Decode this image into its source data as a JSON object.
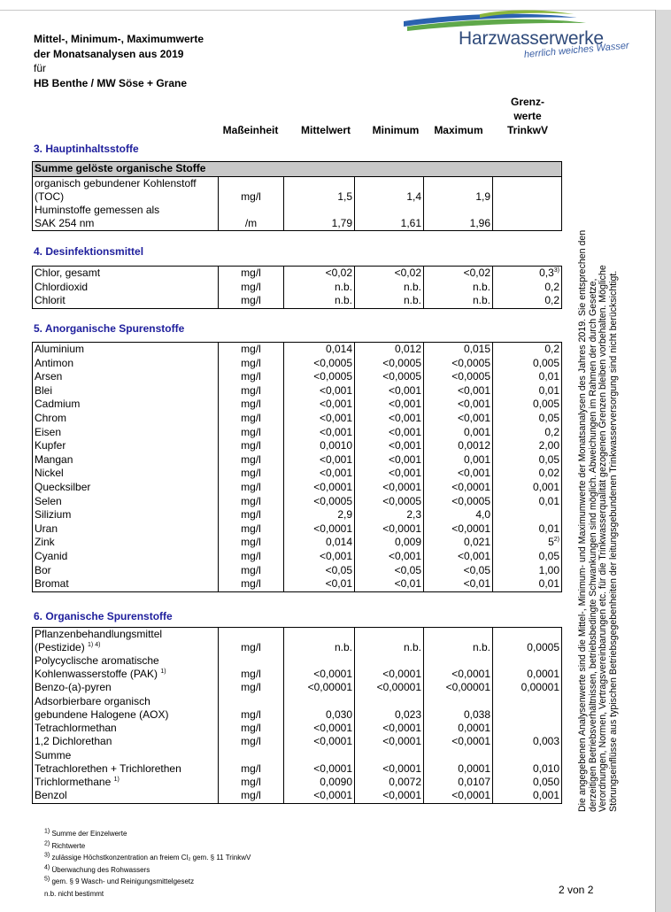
{
  "header": {
    "line1": "Mittel-, Minimum-, Maximumwerte",
    "line2": "der Monatsanalysen aus 2019",
    "line3": "für",
    "line4": "HB Benthe / MW Söse + Grane"
  },
  "logo": {
    "name": "Harzwasserwerke",
    "tagline": "herrlich weiches Wasser",
    "colors": [
      "#2b62b0",
      "#5fa84a",
      "#8ab63d"
    ]
  },
  "columns": {
    "unit": "Maßeinheit",
    "mean": "Mittelwert",
    "min": "Minimum",
    "max": "Maximum",
    "limit1": "Grenz-",
    "limit2": "werte",
    "limit3": "TrinkwV"
  },
  "sections": {
    "s3": {
      "title": "3. Hauptinhaltsstoffe",
      "group": "Summe gelöste organische Stoffe",
      "rows": [
        {
          "l1": "organisch gebundener  Kohlenstoff",
          "l2": "(TOC)",
          "unit": "mg/l",
          "mean": "1,5",
          "min": "1,4",
          "max": "1,9",
          "limit": ""
        },
        {
          "l1": "Huminstoffe gemessen als",
          "l2": "SAK 254 nm",
          "unit": "/m",
          "mean": "1,79",
          "min": "1,61",
          "max": "1,96",
          "limit": ""
        }
      ]
    },
    "s4": {
      "title": "4. Desinfektionsmittel",
      "rows": [
        {
          "name": "Chlor, gesamt",
          "unit": "mg/l",
          "mean": "<0,02",
          "min": "<0,02",
          "max": "<0,02",
          "limit": "0,3",
          "sup": "3)"
        },
        {
          "name": "Chlordioxid",
          "unit": "mg/l",
          "mean": "n.b.",
          "min": "n.b.",
          "max": "n.b.",
          "limit": "0,2",
          "sup": ""
        },
        {
          "name": "Chlorit",
          "unit": "mg/l",
          "mean": "n.b.",
          "min": "n.b.",
          "max": "n.b.",
          "limit": "0,2",
          "sup": ""
        }
      ]
    },
    "s5": {
      "title": "5. Anorganische Spurenstoffe",
      "rows": [
        {
          "name": "Aluminium",
          "unit": "mg/l",
          "mean": "0,014",
          "min": "0,012",
          "max": "0,015",
          "limit": "0,2",
          "sup": ""
        },
        {
          "name": "Antimon",
          "unit": "mg/l",
          "mean": "<0,0005",
          "min": "<0,0005",
          "max": "<0,0005",
          "limit": "0,005",
          "sup": ""
        },
        {
          "name": "Arsen",
          "unit": "mg/l",
          "mean": "<0,0005",
          "min": "<0,0005",
          "max": "<0,0005",
          "limit": "0,01",
          "sup": ""
        },
        {
          "name": "Blei",
          "unit": "mg/l",
          "mean": "<0,001",
          "min": "<0,001",
          "max": "<0,001",
          "limit": "0,01",
          "sup": ""
        },
        {
          "name": "Cadmium",
          "unit": "mg/l",
          "mean": "<0,001",
          "min": "<0,001",
          "max": "<0,001",
          "limit": "0,005",
          "sup": ""
        },
        {
          "name": "Chrom",
          "unit": "mg/l",
          "mean": "<0,001",
          "min": "<0,001",
          "max": "<0,001",
          "limit": "0,05",
          "sup": ""
        },
        {
          "name": "Eisen",
          "unit": "mg/l",
          "mean": "<0,001",
          "min": "<0,001",
          "max": "0,001",
          "limit": "0,2",
          "sup": ""
        },
        {
          "name": "Kupfer",
          "unit": "mg/l",
          "mean": "0,0010",
          "min": "<0,001",
          "max": "0,0012",
          "limit": "2,00",
          "sup": ""
        },
        {
          "name": "Mangan",
          "unit": "mg/l",
          "mean": "<0,001",
          "min": "<0,001",
          "max": "0,001",
          "limit": "0,05",
          "sup": ""
        },
        {
          "name": "Nickel",
          "unit": "mg/l",
          "mean": "<0,001",
          "min": "<0,001",
          "max": "<0,001",
          "limit": "0,02",
          "sup": ""
        },
        {
          "name": "Quecksilber",
          "unit": "mg/l",
          "mean": "<0,0001",
          "min": "<0,0001",
          "max": "<0,0001",
          "limit": "0,001",
          "sup": ""
        },
        {
          "name": "Selen",
          "unit": "mg/l",
          "mean": "<0,0005",
          "min": "<0,0005",
          "max": "<0,0005",
          "limit": "0,01",
          "sup": ""
        },
        {
          "name": "Silizium",
          "unit": "mg/l",
          "mean": "2,9",
          "min": "2,3",
          "max": "4,0",
          "limit": "",
          "sup": ""
        },
        {
          "name": "Uran",
          "unit": "mg/l",
          "mean": "<0,0001",
          "min": "<0,0001",
          "max": "<0,0001",
          "limit": "0,01",
          "sup": ""
        },
        {
          "name": "Zink",
          "unit": "mg/l",
          "mean": "0,014",
          "min": "0,009",
          "max": "0,021",
          "limit": "5",
          "sup": "2)"
        },
        {
          "name": "Cyanid",
          "unit": "mg/l",
          "mean": "<0,001",
          "min": "<0,001",
          "max": "<0,001",
          "limit": "0,05",
          "sup": ""
        },
        {
          "name": "Bor",
          "unit": "mg/l",
          "mean": "<0,05",
          "min": "<0,05",
          "max": "<0,05",
          "limit": "1,00",
          "sup": ""
        },
        {
          "name": "Bromat",
          "unit": "mg/l",
          "mean": "<0,01",
          "min": "<0,01",
          "max": "<0,01",
          "limit": "0,01",
          "sup": ""
        }
      ]
    },
    "s6": {
      "title": "6. Organische Spurenstoffe",
      "rows": [
        {
          "l1": "Pflanzenbehandlungsmittel",
          "l2": "(Pestizide)",
          "sup": "1) 4)",
          "unit": "mg/l",
          "mean": "n.b.",
          "min": "n.b.",
          "max": "n.b.",
          "limit": "0,0005"
        },
        {
          "l1": "Polycyclische aromatische",
          "l2": "Kohlenwasserstoffe (PAK)",
          "sup": "1)",
          "unit": "mg/l",
          "mean": "<0,0001",
          "min": "<0,0001",
          "max": "<0,0001",
          "limit": "0,0001"
        },
        {
          "l1": "",
          "l2": "Benzo-(a)-pyren",
          "sup": "",
          "unit": "mg/l",
          "mean": "<0,00001",
          "min": "<0,00001",
          "max": "<0,00001",
          "limit": "0,00001"
        },
        {
          "l1": "Adsorbierbare organisch",
          "l2": "gebundene Halogene (AOX)",
          "sup": "",
          "unit": "mg/l",
          "mean": "0,030",
          "min": "0,023",
          "max": "0,038",
          "limit": ""
        },
        {
          "l1": "",
          "l2": "Tetrachlormethan",
          "sup": "",
          "unit": "mg/l",
          "mean": "<0,0001",
          "min": "<0,0001",
          "max": "0,0001",
          "limit": ""
        },
        {
          "l1": "",
          "l2": "1,2 Dichlorethan",
          "sup": "",
          "unit": "mg/l",
          "mean": "<0,0001",
          "min": "<0,0001",
          "max": "<0,0001",
          "limit": "0,003"
        },
        {
          "l1": "Summe",
          "l2": "Tetrachlorethen + Trichlorethen",
          "sup": "",
          "unit": "mg/l",
          "mean": "<0,0001",
          "min": "<0,0001",
          "max": "0,0001",
          "limit": "0,010"
        },
        {
          "l1": "",
          "l2": "Trichlormethane",
          "sup": "1)",
          "unit": "mg/l",
          "mean": "0,0090",
          "min": "0,0072",
          "max": "0,0107",
          "limit": "0,050"
        },
        {
          "l1": "",
          "l2": "Benzol",
          "sup": "",
          "unit": "mg/l",
          "mean": "<0,0001",
          "min": "<0,0001",
          "max": "<0,0001",
          "limit": "0,001"
        }
      ]
    }
  },
  "side_note": {
    "l1": "Die angegebenen Analysenwerte sind die Mittel-, Minimum- und Maximumwerte der Monatsanalysen des Jahres 2019. Sie entsprechen den",
    "l2": "derzeitigen Betriebsverhältnissen, betriebsbedingte Schwankungen sind möglich. Abweichungen im Rahmen der durch Gesetze,",
    "l3": "Verordnungen, Normen, Vertragsvereinbarungen etc. für die Trinkwasserqualität gezogenen Grenzen bleiben vorbehalten. Mögliche",
    "l4": "Störungseinflüsse aus typischen Betriebsgegebenheiten der leitungsgebundenen Trinkwasserversorgung sind nicht berücksichtigt."
  },
  "footnotes": [
    {
      "sup": "1)",
      "text": "Summe der Einzelwerte"
    },
    {
      "sup": "2)",
      "text": "Richtwerte"
    },
    {
      "sup": "3)",
      "text": "zulässige Höchstkonzentration an freiem Cl₂ gem. § 11 TrinkwV"
    },
    {
      "sup": "4)",
      "text": "Überwachung des Rohwassers"
    },
    {
      "sup": "5)",
      "text": "gem. § 9 Wasch- und Reinigungsmittelgesetz"
    },
    {
      "sup": "",
      "text": "n.b. nicht bestimmt"
    }
  ],
  "page": "2 von 2"
}
